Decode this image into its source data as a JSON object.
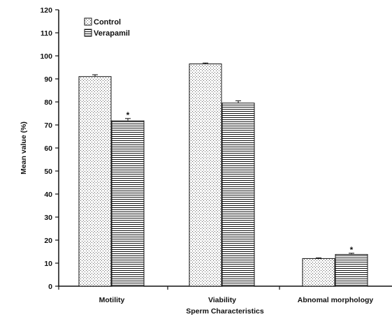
{
  "chart_data": {
    "type": "bar",
    "categories": [
      "Motility",
      "Viability",
      "Abnomal morphology"
    ],
    "series": [
      {
        "name": "Control",
        "values": [
          91,
          96.5,
          12
        ],
        "errors": [
          0.8,
          0.4,
          0.3
        ],
        "significance": [
          "",
          "",
          ""
        ],
        "pattern": "dots"
      },
      {
        "name": "Verapamil",
        "values": [
          71.8,
          79.5,
          13.8
        ],
        "errors": [
          1.0,
          1.0,
          0.5
        ],
        "significance": [
          "*",
          "",
          "*"
        ],
        "pattern": "horizontal-lines"
      }
    ],
    "xlabel": "Sperm Characteristics",
    "ylabel": "Mean value (%)",
    "ylim": [
      0,
      120
    ],
    "yticks": [
      "0",
      "10",
      "20",
      "30",
      "40",
      "50",
      "60",
      "70",
      "80",
      "90",
      "100",
      "110",
      "120"
    ],
    "grid": false,
    "legend_position": "top-left"
  }
}
